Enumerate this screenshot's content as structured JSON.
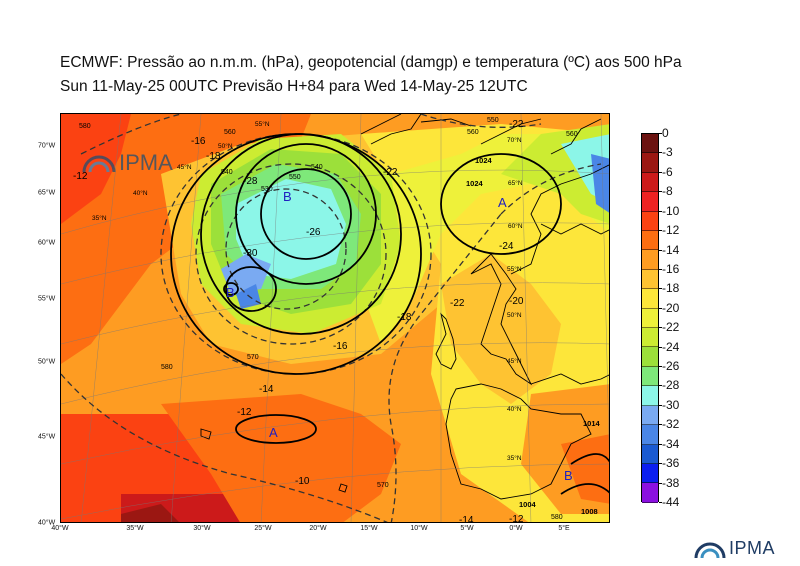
{
  "header": {
    "title_line1": "ECMWF:  Pressão ao n.m.m. (hPa), geopotencial (damgp) e temperatura (ºC) aos 500 hPa",
    "title_line2": "Sun 11-May-25 00UTC Previsão H+84 para Wed 14-May-25 12UTC"
  },
  "colorbar": {
    "labels": [
      "0",
      "-3",
      "-6",
      "-8",
      "-10",
      "-12",
      "-14",
      "-16",
      "-18",
      "-20",
      "-22",
      "-24",
      "-26",
      "-28",
      "-30",
      "-32",
      "-34",
      "-36",
      "-38",
      "-44"
    ],
    "colors": [
      "#6b1210",
      "#9b1712",
      "#cc1a1a",
      "#ee2222",
      "#fb4212",
      "#fd6e12",
      "#fe9c22",
      "#fec332",
      "#fde63a",
      "#eef13a",
      "#ccec32",
      "#9ce03a",
      "#7ee87a",
      "#8cf6e8",
      "#7aaaf2",
      "#4a86e6",
      "#1a5ad2",
      "#0c1ef0",
      "#8b10e0",
      "#e010f0"
    ]
  },
  "axes": {
    "lon_labels": [
      "40°W",
      "35°W",
      "30°W",
      "25°W",
      "20°W",
      "15°W",
      "10°W",
      "5°W",
      "0°W",
      "5°E"
    ],
    "lat_labels": [
      "70°W",
      "65°W",
      "60°W",
      "55°W",
      "50°W",
      "45°W",
      "40°W"
    ]
  },
  "map": {
    "pressure_centers": [
      "B",
      "B",
      "A",
      "A",
      "B"
    ],
    "temp_labels": [
      "-30",
      "-28",
      "-26",
      "-22",
      "-22",
      "-18",
      "-16",
      "-14",
      "-12",
      "-10",
      "-16",
      "-22",
      "-24",
      "-12",
      "-14",
      "-12",
      "-20",
      "-18"
    ],
    "geo_labels": [
      "580",
      "560",
      "540",
      "530",
      "570",
      "580",
      "570",
      "580",
      "550",
      "560",
      "540",
      "560",
      "550"
    ],
    "pressure_labels": [
      "1024",
      "1024",
      "1004",
      "1014",
      "1008"
    ],
    "grid_labels": [
      "55°N",
      "50°N",
      "45°N",
      "40°N",
      "35°N",
      "70°N",
      "65°N",
      "60°N",
      "55°N",
      "50°N",
      "45°N",
      "40°N",
      "35°N"
    ],
    "watermark_text": "IPMA"
  },
  "footer": {
    "logo_text": "IPMA"
  }
}
